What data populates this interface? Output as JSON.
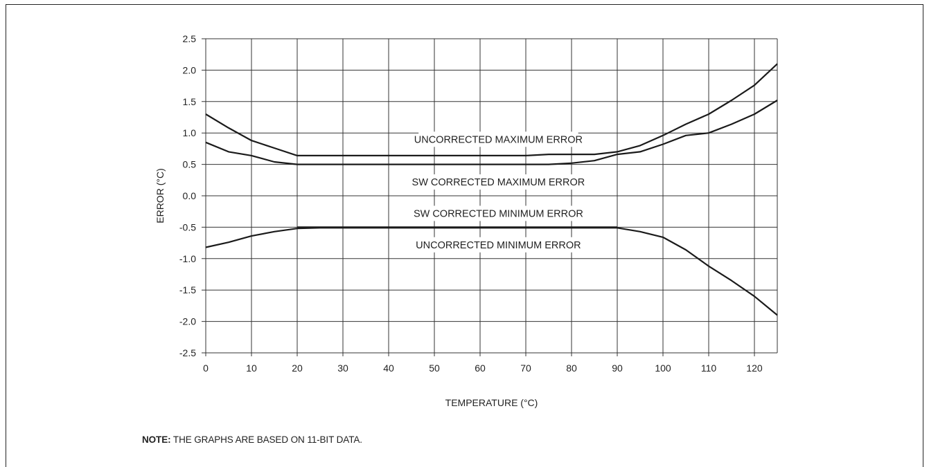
{
  "chart_data": {
    "type": "line",
    "title": "",
    "xlabel": "TEMPERATURE (°C)",
    "ylabel": "ERROR (°C)",
    "xlim": [
      0,
      125
    ],
    "ylim": [
      -2.5,
      2.5
    ],
    "x_ticks": [
      0,
      10,
      20,
      30,
      40,
      50,
      60,
      70,
      80,
      90,
      100,
      110,
      120
    ],
    "y_ticks": [
      2.5,
      2.0,
      1.5,
      1.0,
      0.5,
      0.0,
      -0.5,
      -1.0,
      -1.5,
      -2.0,
      -2.5
    ],
    "y_tick_labels": [
      "2.5",
      "2.0",
      "1.5",
      "1.0",
      "0.5",
      "0.0",
      "-0.5",
      "-1.0",
      "-1.5",
      "-2.0",
      "-2.5"
    ],
    "grid": true,
    "legend": "none",
    "series": [
      {
        "name": "UNCORRECTED MAXIMUM ERROR",
        "points": [
          [
            0,
            1.3
          ],
          [
            5,
            1.08
          ],
          [
            10,
            0.88
          ],
          [
            15,
            0.76
          ],
          [
            20,
            0.64
          ],
          [
            30,
            0.64
          ],
          [
            40,
            0.64
          ],
          [
            50,
            0.64
          ],
          [
            60,
            0.64
          ],
          [
            70,
            0.64
          ],
          [
            75,
            0.66
          ],
          [
            80,
            0.66
          ],
          [
            85,
            0.66
          ],
          [
            90,
            0.7
          ],
          [
            95,
            0.8
          ],
          [
            100,
            0.96
          ],
          [
            105,
            1.14
          ],
          [
            110,
            1.3
          ],
          [
            115,
            1.52
          ],
          [
            120,
            1.76
          ],
          [
            125,
            2.1
          ]
        ]
      },
      {
        "name": "SW CORRECTED MAXIMUM ERROR",
        "points": [
          [
            0,
            0.85
          ],
          [
            5,
            0.7
          ],
          [
            10,
            0.64
          ],
          [
            15,
            0.54
          ],
          [
            20,
            0.5
          ],
          [
            30,
            0.5
          ],
          [
            40,
            0.5
          ],
          [
            50,
            0.5
          ],
          [
            60,
            0.5
          ],
          [
            70,
            0.5
          ],
          [
            75,
            0.5
          ],
          [
            80,
            0.52
          ],
          [
            85,
            0.56
          ],
          [
            90,
            0.66
          ],
          [
            95,
            0.7
          ],
          [
            100,
            0.82
          ],
          [
            105,
            0.96
          ],
          [
            110,
            1.0
          ],
          [
            115,
            1.14
          ],
          [
            120,
            1.3
          ],
          [
            125,
            1.52
          ]
        ]
      },
      {
        "name": "SW CORRECTED MINIMUM ERROR",
        "points": [
          [
            20,
            -0.5
          ],
          [
            25,
            -0.5
          ],
          [
            30,
            -0.5
          ],
          [
            40,
            -0.5
          ],
          [
            50,
            -0.5
          ],
          [
            60,
            -0.5
          ],
          [
            70,
            -0.5
          ],
          [
            80,
            -0.5
          ],
          [
            90,
            -0.5
          ]
        ]
      },
      {
        "name": "UNCORRECTED MINIMUM ERROR",
        "points": [
          [
            0,
            -0.82
          ],
          [
            5,
            -0.74
          ],
          [
            10,
            -0.64
          ],
          [
            15,
            -0.57
          ],
          [
            20,
            -0.52
          ],
          [
            25,
            -0.51
          ],
          [
            30,
            -0.51
          ],
          [
            40,
            -0.51
          ],
          [
            50,
            -0.51
          ],
          [
            60,
            -0.51
          ],
          [
            70,
            -0.51
          ],
          [
            80,
            -0.51
          ],
          [
            90,
            -0.51
          ],
          [
            95,
            -0.57
          ],
          [
            100,
            -0.66
          ],
          [
            105,
            -0.86
          ],
          [
            110,
            -1.12
          ],
          [
            115,
            -1.35
          ],
          [
            120,
            -1.6
          ],
          [
            125,
            -1.9
          ]
        ]
      }
    ],
    "annotations": [
      {
        "text": "UNCORRECTED MAXIMUM ERROR",
        "x": 64,
        "y": 0.9
      },
      {
        "text": "SW CORRECTED MAXIMUM ERROR",
        "x": 64,
        "y": 0.22
      },
      {
        "text": "SW CORRECTED MINIMUM ERROR",
        "x": 64,
        "y": -0.28
      },
      {
        "text": "UNCORRECTED MINIMUM ERROR",
        "x": 64,
        "y": -0.78
      }
    ]
  },
  "note": {
    "label": "NOTE:",
    "text": "THE GRAPHS ARE BASED ON 11-BIT DATA."
  }
}
